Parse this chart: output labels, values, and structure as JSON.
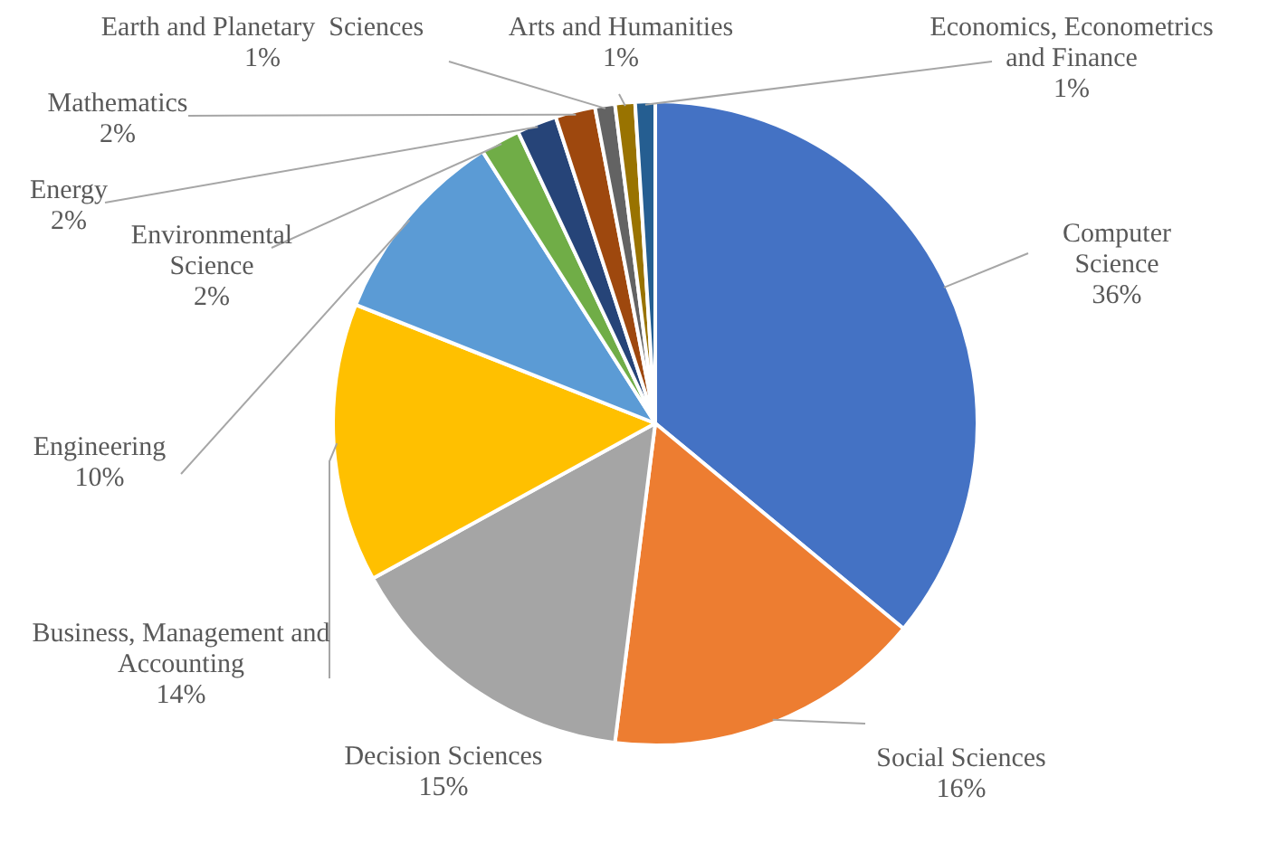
{
  "chart_data": {
    "type": "pie",
    "categories": [
      "Computer Science",
      "Social Sciences",
      "Decision Sciences",
      "Business, Management and Accounting",
      "Engineering",
      "Environmental Science",
      "Energy",
      "Mathematics",
      "Earth and Planetary  Sciences",
      "Arts and Humanities",
      "Economics, Econometrics and Finance"
    ],
    "values": [
      36,
      16,
      15,
      14,
      10,
      2,
      2,
      2,
      1,
      1,
      1
    ],
    "value_labels": [
      "36%",
      "16%",
      "15%",
      "14%",
      "10%",
      "2%",
      "2%",
      "2%",
      "1%",
      "1%",
      "1%"
    ],
    "colors": [
      "#4472c4",
      "#ed7d31",
      "#a5a5a5",
      "#ffc000",
      "#5b9bd5",
      "#70ad47",
      "#264478",
      "#9e480e",
      "#636363",
      "#997300",
      "#255e91"
    ]
  }
}
